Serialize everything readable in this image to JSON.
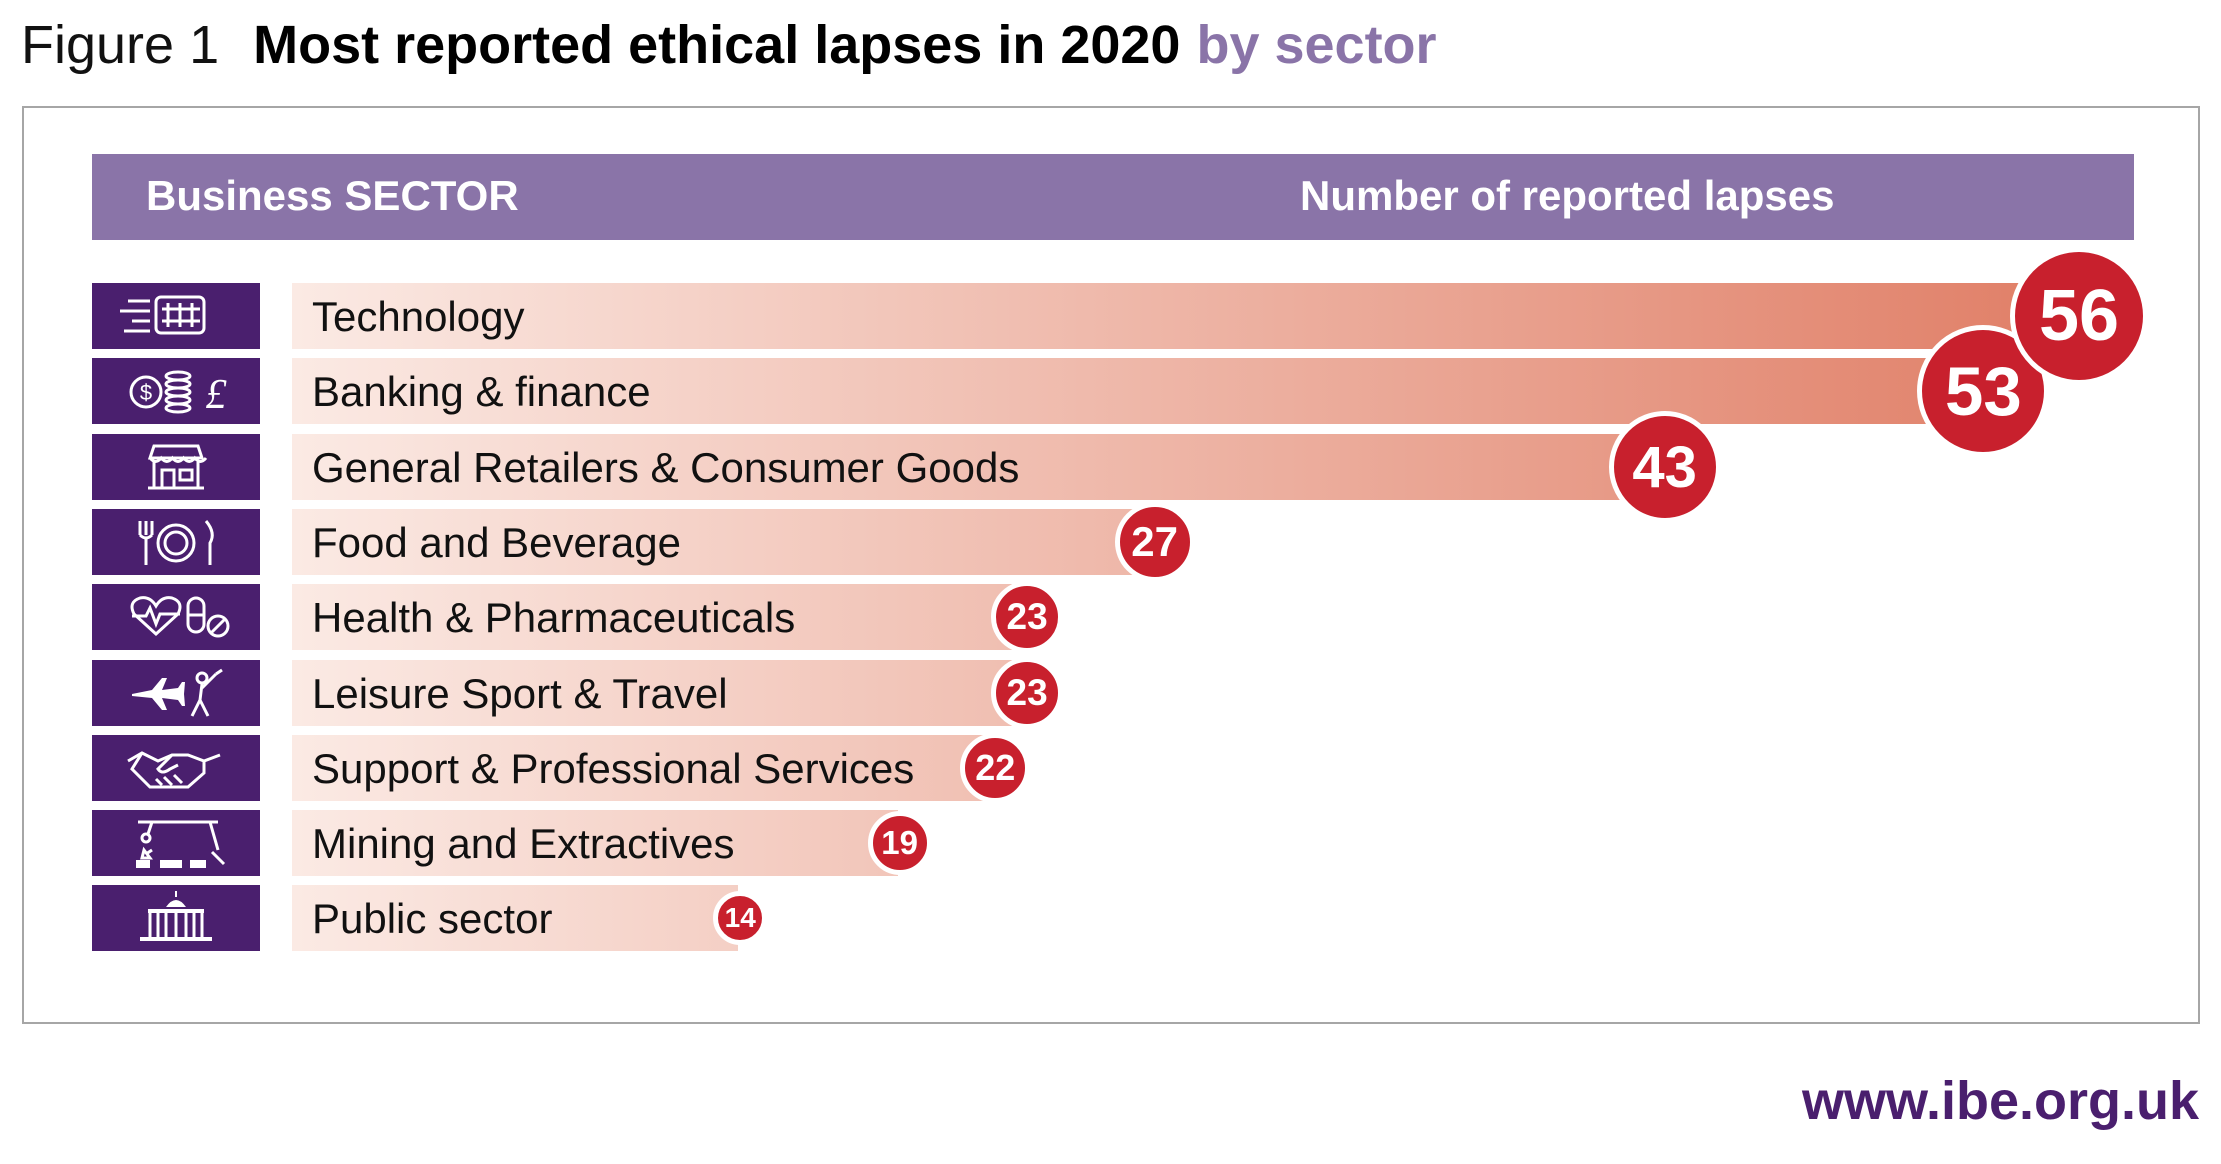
{
  "figure": {
    "label": "Figure 1",
    "title": "Most reported ethical lapses in 2020",
    "subtitle": "by sector"
  },
  "header": {
    "left": "Business SECTOR",
    "right": "Number of reported lapses"
  },
  "colors": {
    "header": "#8a74a8",
    "icon_bg": "#4a1f6e",
    "badge": "#c8202d",
    "bar_light": "#fbeae4",
    "bar_dark": "#e07e66"
  },
  "chart_data": {
    "type": "bar",
    "orientation": "horizontal",
    "xlabel": "Number of reported lapses",
    "ylabel": "Business SECTOR",
    "xlim": [
      0,
      56
    ],
    "categories": [
      "Technology",
      "Banking & finance",
      "General Retailers & Consumer Goods",
      "Food and Beverage",
      "Health & Pharmaceuticals",
      "Leisure Sport & Travel",
      "Support & Professional Services",
      "Mining and Extractives",
      "Public sector"
    ],
    "values": [
      56,
      53,
      43,
      27,
      23,
      23,
      22,
      19,
      14
    ],
    "icons": [
      "technology-icon",
      "banking-icon",
      "retail-store-icon",
      "food-plate-icon",
      "health-pills-icon",
      "travel-sport-icon",
      "handshake-icon",
      "mining-crane-icon",
      "public-building-icon"
    ]
  },
  "footer": {
    "url": "www.ibe.org.uk"
  }
}
